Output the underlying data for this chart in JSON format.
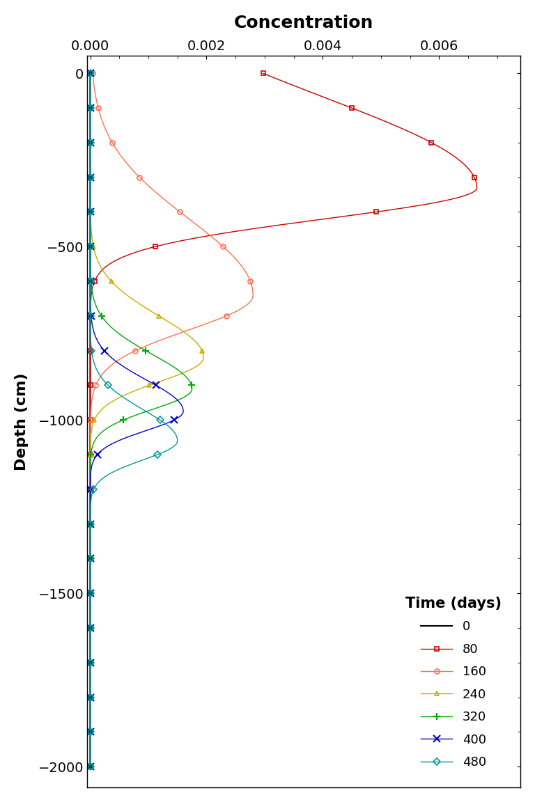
{
  "title": "Concentration",
  "ylabel": "Depth (cm)",
  "xlim": [
    -5e-05,
    0.0074
  ],
  "ylim": [
    -2060,
    50
  ],
  "xticks": [
    0.0,
    0.002,
    0.004,
    0.006
  ],
  "yticks": [
    0,
    -500,
    -1000,
    -1500,
    -2000
  ],
  "depth_min": 0,
  "depth_max": -2000,
  "n_points": 2001,
  "legend_title": "Time (days)",
  "series": [
    {
      "label": "0",
      "color": "#000000",
      "marker": null,
      "peak_depth": -100,
      "peak_conc": 0.0,
      "sigma_up": 50,
      "sigma_dn": 50
    },
    {
      "label": "80",
      "color": "#cc0000",
      "marker": "s",
      "peak_depth": -330,
      "peak_conc": 0.00665,
      "sigma_up": 260,
      "sigma_dn": 90
    },
    {
      "label": "160",
      "color": "#ff7050",
      "marker": "o",
      "peak_depth": -640,
      "peak_conc": 0.0028,
      "sigma_up": 220,
      "sigma_dn": 100
    },
    {
      "label": "240",
      "color": "#ccaa00",
      "marker": "^",
      "peak_depth": -820,
      "peak_conc": 0.00195,
      "sigma_up": 120,
      "sigma_dn": 70
    },
    {
      "label": "320",
      "color": "#00aa00",
      "marker": "+",
      "peak_depth": -910,
      "peak_conc": 0.00175,
      "sigma_up": 100,
      "sigma_dn": 60
    },
    {
      "label": "400",
      "color": "#0000cc",
      "marker": "x",
      "peak_depth": -975,
      "peak_conc": 0.0016,
      "sigma_up": 90,
      "sigma_dn": 55
    },
    {
      "label": "480",
      "color": "#009999",
      "marker": "D",
      "peak_depth": -1060,
      "peak_conc": 0.0015,
      "sigma_up": 90,
      "sigma_dn": 55
    }
  ]
}
